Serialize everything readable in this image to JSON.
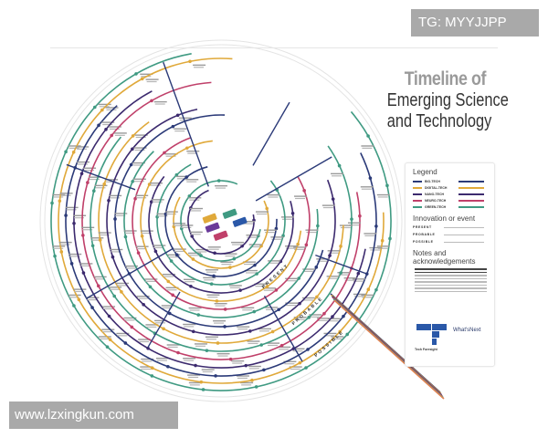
{
  "watermarks": {
    "top_right": "TG: MYYJJPP",
    "bottom_left": "www.lzxingkun.com"
  },
  "title": {
    "line1": "Timeline of",
    "line2": "Emerging Science",
    "line3": "and Technology"
  },
  "eras": {
    "present": "PRESENT",
    "probable": "PROBABLE",
    "possible": "POSSIBLE"
  },
  "legend": {
    "heading": "Legend",
    "categories": [
      {
        "name": "BIO-TECH",
        "color": "#2b3a78"
      },
      {
        "name": "DIGITAL-TECH",
        "color": "#e0a93a"
      },
      {
        "name": "NANO-TECH",
        "color": "#3c2a6e"
      },
      {
        "name": "NEURO-TECH",
        "color": "#c0406a"
      },
      {
        "name": "GREEN-TECH",
        "color": "#3f9a82"
      }
    ],
    "innovation_heading": "Innovation or event",
    "events": [
      {
        "label": "PRESENT"
      },
      {
        "label": "PROBABLE"
      },
      {
        "label": "POSSIBLE"
      }
    ],
    "notes_heading": "Notes and acknowledgements",
    "logo_left": "Tech Foresight",
    "logo_right": "What'sNext"
  },
  "colors": {
    "ring_gray": "#e4e4e4",
    "background": "#ffffff"
  }
}
